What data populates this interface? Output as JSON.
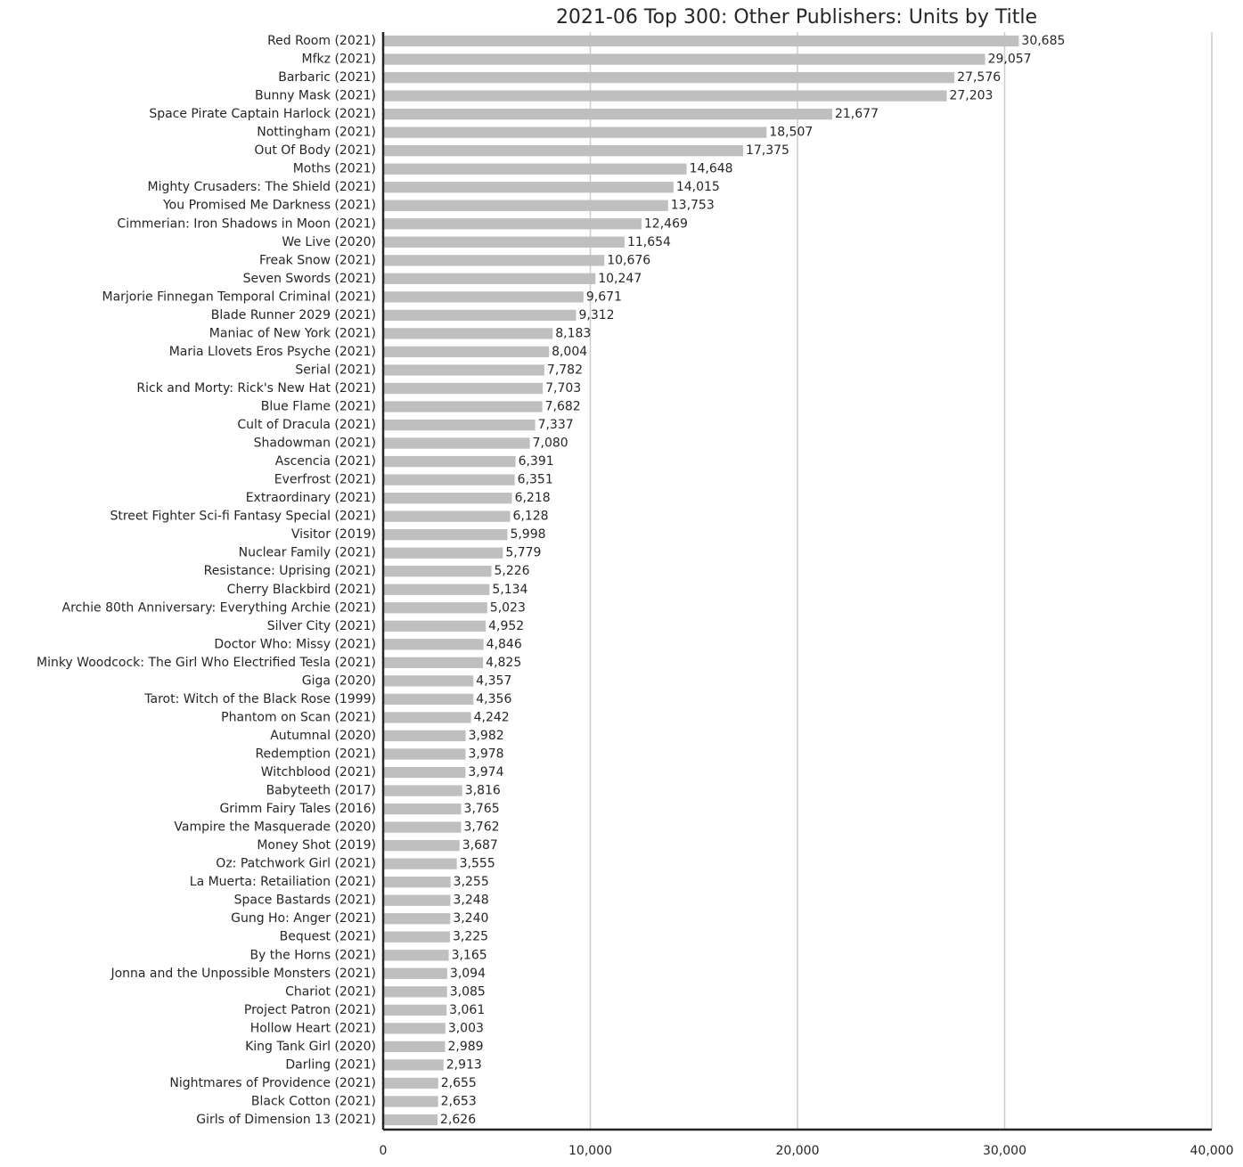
{
  "chart_data": {
    "type": "barh",
    "title": "2021-06 Top 300: Other Publishers: Units by Title",
    "categories": [
      "Red Room (2021)",
      "Mfkz (2021)",
      "Barbaric (2021)",
      "Bunny Mask (2021)",
      "Space Pirate Captain Harlock (2021)",
      "Nottingham (2021)",
      "Out Of Body (2021)",
      "Moths (2021)",
      "Mighty Crusaders: The Shield (2021)",
      "You Promised Me Darkness (2021)",
      "Cimmerian: Iron Shadows in Moon (2021)",
      "We Live (2020)",
      "Freak Snow (2021)",
      "Seven Swords (2021)",
      "Marjorie Finnegan Temporal Criminal (2021)",
      "Blade Runner 2029 (2021)",
      "Maniac of New York (2021)",
      "Maria Llovets Eros Psyche (2021)",
      "Serial (2021)",
      "Rick and Morty: Rick's New Hat (2021)",
      "Blue Flame (2021)",
      "Cult of Dracula (2021)",
      "Shadowman (2021)",
      "Ascencia (2021)",
      "Everfrost (2021)",
      "Extraordinary (2021)",
      "Street Fighter Sci-fi Fantasy Special (2021)",
      "Visitor (2019)",
      "Nuclear Family (2021)",
      "Resistance: Uprising (2021)",
      "Cherry Blackbird (2021)",
      "Archie 80th Anniversary: Everything Archie (2021)",
      "Silver City (2021)",
      "Doctor Who: Missy (2021)",
      "Minky Woodcock: The Girl Who Electrified Tesla (2021)",
      "Giga (2020)",
      "Tarot: Witch of the Black Rose (1999)",
      "Phantom on Scan (2021)",
      "Autumnal (2020)",
      "Redemption (2021)",
      "Witchblood (2021)",
      "Babyteeth (2017)",
      "Grimm Fairy Tales (2016)",
      "Vampire the Masquerade (2020)",
      "Money Shot (2019)",
      "Oz: Patchwork Girl (2021)",
      "La Muerta: Retailiation (2021)",
      "Space Bastards (2021)",
      "Gung Ho: Anger (2021)",
      "Bequest (2021)",
      "By the Horns (2021)",
      "Jonna and the Unpossible Monsters (2021)",
      "Chariot (2021)",
      "Project Patron (2021)",
      "Hollow Heart (2021)",
      "King Tank Girl (2020)",
      "Darling (2021)",
      "Nightmares of Providence (2021)",
      "Black Cotton (2021)",
      "Girls of Dimension 13 (2021)"
    ],
    "values": [
      30685,
      29057,
      27576,
      27203,
      21677,
      18507,
      17375,
      14648,
      14015,
      13753,
      12469,
      11654,
      10676,
      10247,
      9671,
      9312,
      8183,
      8004,
      7782,
      7703,
      7682,
      7337,
      7080,
      6391,
      6351,
      6218,
      6128,
      5998,
      5779,
      5226,
      5134,
      5023,
      4952,
      4846,
      4825,
      4357,
      4356,
      4242,
      3982,
      3978,
      3974,
      3816,
      3765,
      3762,
      3687,
      3555,
      3255,
      3248,
      3240,
      3225,
      3165,
      3094,
      3085,
      3061,
      3003,
      2989,
      2913,
      2655,
      2653,
      2626
    ],
    "value_labels": [
      "30,685",
      "29,057",
      "27,576",
      "27,203",
      "21,677",
      "18,507",
      "17,375",
      "14,648",
      "14,015",
      "13,753",
      "12,469",
      "11,654",
      "10,676",
      "10,247",
      "9,671",
      "9,312",
      "8,183",
      "8,004",
      "7,782",
      "7,703",
      "7,682",
      "7,337",
      "7,080",
      "6,391",
      "6,351",
      "6,218",
      "6,128",
      "5,998",
      "5,779",
      "5,226",
      "5,134",
      "5,023",
      "4,952",
      "4,846",
      "4,825",
      "4,357",
      "4,356",
      "4,242",
      "3,982",
      "3,978",
      "3,974",
      "3,816",
      "3,765",
      "3,762",
      "3,687",
      "3,555",
      "3,255",
      "3,248",
      "3,240",
      "3,225",
      "3,165",
      "3,094",
      "3,085",
      "3,061",
      "3,003",
      "2,989",
      "2,913",
      "2,655",
      "2,653",
      "2,626"
    ],
    "color": "#bfbfbf",
    "xlim": [
      0,
      40000
    ],
    "xticks": [
      0,
      {
        "value": 10000,
        "label": "10,000"
      },
      {
        "value": 20000,
        "label": "20,000"
      },
      {
        "value": 30000,
        "label": "30,000"
      },
      {
        "value": 40000,
        "label": "40,000"
      }
    ],
    "grid": true
  }
}
